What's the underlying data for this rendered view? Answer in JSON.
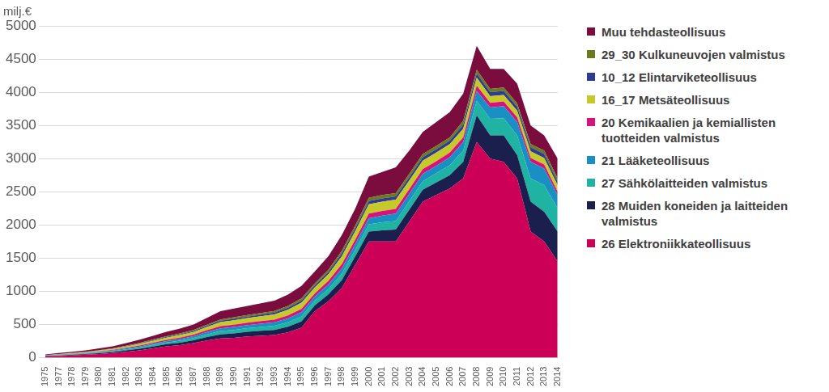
{
  "chart_data": {
    "type": "area",
    "title": "milj.€",
    "categories": [
      "1975",
      "1977",
      "1978",
      "1979",
      "1980",
      "1981",
      "1982",
      "1983",
      "1984",
      "1985",
      "1986",
      "1987",
      "1988",
      "1989",
      "1990",
      "1991",
      "1992",
      "1993",
      "1994",
      "1995",
      "1996",
      "1997",
      "1998",
      "1999",
      "2000",
      "2001",
      "2002",
      "2003",
      "2004",
      "2005",
      "2006",
      "2007",
      "2008",
      "2009",
      "2010",
      "2011",
      "2012",
      "2013",
      "2014"
    ],
    "stacked": true,
    "grid": true,
    "legend": "right",
    "ylim": [
      0,
      5000
    ],
    "yticks": [
      0,
      500,
      1000,
      1500,
      2000,
      2500,
      3000,
      3500,
      4000,
      4500,
      5000
    ],
    "series": [
      {
        "name": "26 Elektroniikkateollisuus",
        "color": "#cc0057",
        "values": [
          20,
          25,
          35,
          45,
          55,
          70,
          90,
          110,
          140,
          170,
          190,
          220,
          260,
          290,
          300,
          320,
          330,
          340,
          380,
          450,
          700,
          850,
          1050,
          1400,
          1750,
          1750,
          1750,
          2050,
          2350,
          2450,
          2550,
          2700,
          3250,
          3000,
          2950,
          2700,
          1900,
          1750,
          1450
        ]
      },
      {
        "name": "28 Muiden koneiden ja laitteiden valmistus",
        "color": "#1b1f4d",
        "values": [
          4,
          7,
          8,
          10,
          13,
          15,
          20,
          24,
          28,
          33,
          37,
          42,
          51,
          62,
          66,
          69,
          74,
          78,
          86,
          95,
          90,
          102,
          120,
          128,
          150,
          170,
          180,
          180,
          180,
          190,
          200,
          250,
          400,
          350,
          400,
          350,
          450,
          450,
          450
        ]
      },
      {
        "name": "27 Sähkölaitteiden valmistus",
        "color": "#1fb3a3",
        "values": [
          4,
          5,
          7,
          8,
          10,
          12,
          16,
          19,
          23,
          26,
          30,
          34,
          41,
          49,
          53,
          55,
          59,
          62,
          68,
          76,
          72,
          82,
          96,
          102,
          110,
          120,
          130,
          130,
          130,
          140,
          150,
          170,
          220,
          250,
          260,
          300,
          350,
          400,
          350
        ]
      },
      {
        "name": "21 Lääketeollisuus",
        "color": "#1a8fc4",
        "values": [
          3,
          5,
          5,
          6,
          8,
          10,
          13,
          16,
          19,
          22,
          25,
          28,
          34,
          41,
          44,
          46,
          49,
          52,
          57,
          63,
          60,
          68,
          80,
          85,
          90,
          100,
          110,
          110,
          110,
          110,
          120,
          130,
          150,
          170,
          180,
          200,
          250,
          250,
          200
        ]
      },
      {
        "name": "20 Kemikaalien ja kemiallisten tuotteiden valmistus",
        "color": "#d8127a",
        "values": [
          2,
          3,
          4,
          5,
          7,
          8,
          10,
          13,
          15,
          18,
          20,
          22,
          27,
          33,
          35,
          37,
          39,
          42,
          46,
          50,
          48,
          54,
          64,
          68,
          70,
          70,
          70,
          70,
          70,
          70,
          70,
          70,
          80,
          70,
          70,
          70,
          60,
          60,
          50
        ]
      },
      {
        "name": "16_17 Metsäteollisuus",
        "color": "#c6c92a",
        "values": [
          4,
          7,
          8,
          10,
          13,
          15,
          20,
          24,
          28,
          33,
          38,
          42,
          51,
          62,
          66,
          69,
          74,
          78,
          86,
          95,
          90,
          102,
          120,
          128,
          140,
          140,
          140,
          130,
          130,
          130,
          130,
          130,
          120,
          100,
          100,
          100,
          100,
          100,
          100
        ]
      },
      {
        "name": "10_12 Elintarviketeollisuus",
        "color": "#2f3b93",
        "values": [
          2,
          2,
          3,
          3,
          4,
          5,
          6,
          8,
          10,
          11,
          12,
          14,
          17,
          20,
          22,
          23,
          24,
          26,
          28,
          31,
          30,
          34,
          40,
          42,
          50,
          50,
          50,
          50,
          50,
          50,
          50,
          60,
          60,
          60,
          60,
          60,
          60,
          60,
          50
        ]
      },
      {
        "name": "29_30 Kulkuneuvojen valmistus",
        "color": "#6a7a1e",
        "values": [
          2,
          2,
          3,
          3,
          4,
          5,
          6,
          8,
          10,
          11,
          13,
          14,
          17,
          20,
          22,
          23,
          24,
          26,
          28,
          31,
          30,
          34,
          40,
          42,
          50,
          50,
          50,
          50,
          50,
          50,
          50,
          60,
          60,
          50,
          50,
          50,
          50,
          50,
          50
        ]
      },
      {
        "name": "Muu tehdasteollisuus",
        "color": "#7b0c3e",
        "values": [
          9,
          14,
          17,
          20,
          26,
          30,
          39,
          48,
          57,
          66,
          75,
          84,
          102,
          123,
          132,
          138,
          147,
          156,
          171,
          189,
          180,
          204,
          240,
          255,
          320,
          350,
          390,
          350,
          330,
          360,
          380,
          410,
          360,
          300,
          280,
          300,
          280,
          230,
          300
        ]
      }
    ]
  }
}
